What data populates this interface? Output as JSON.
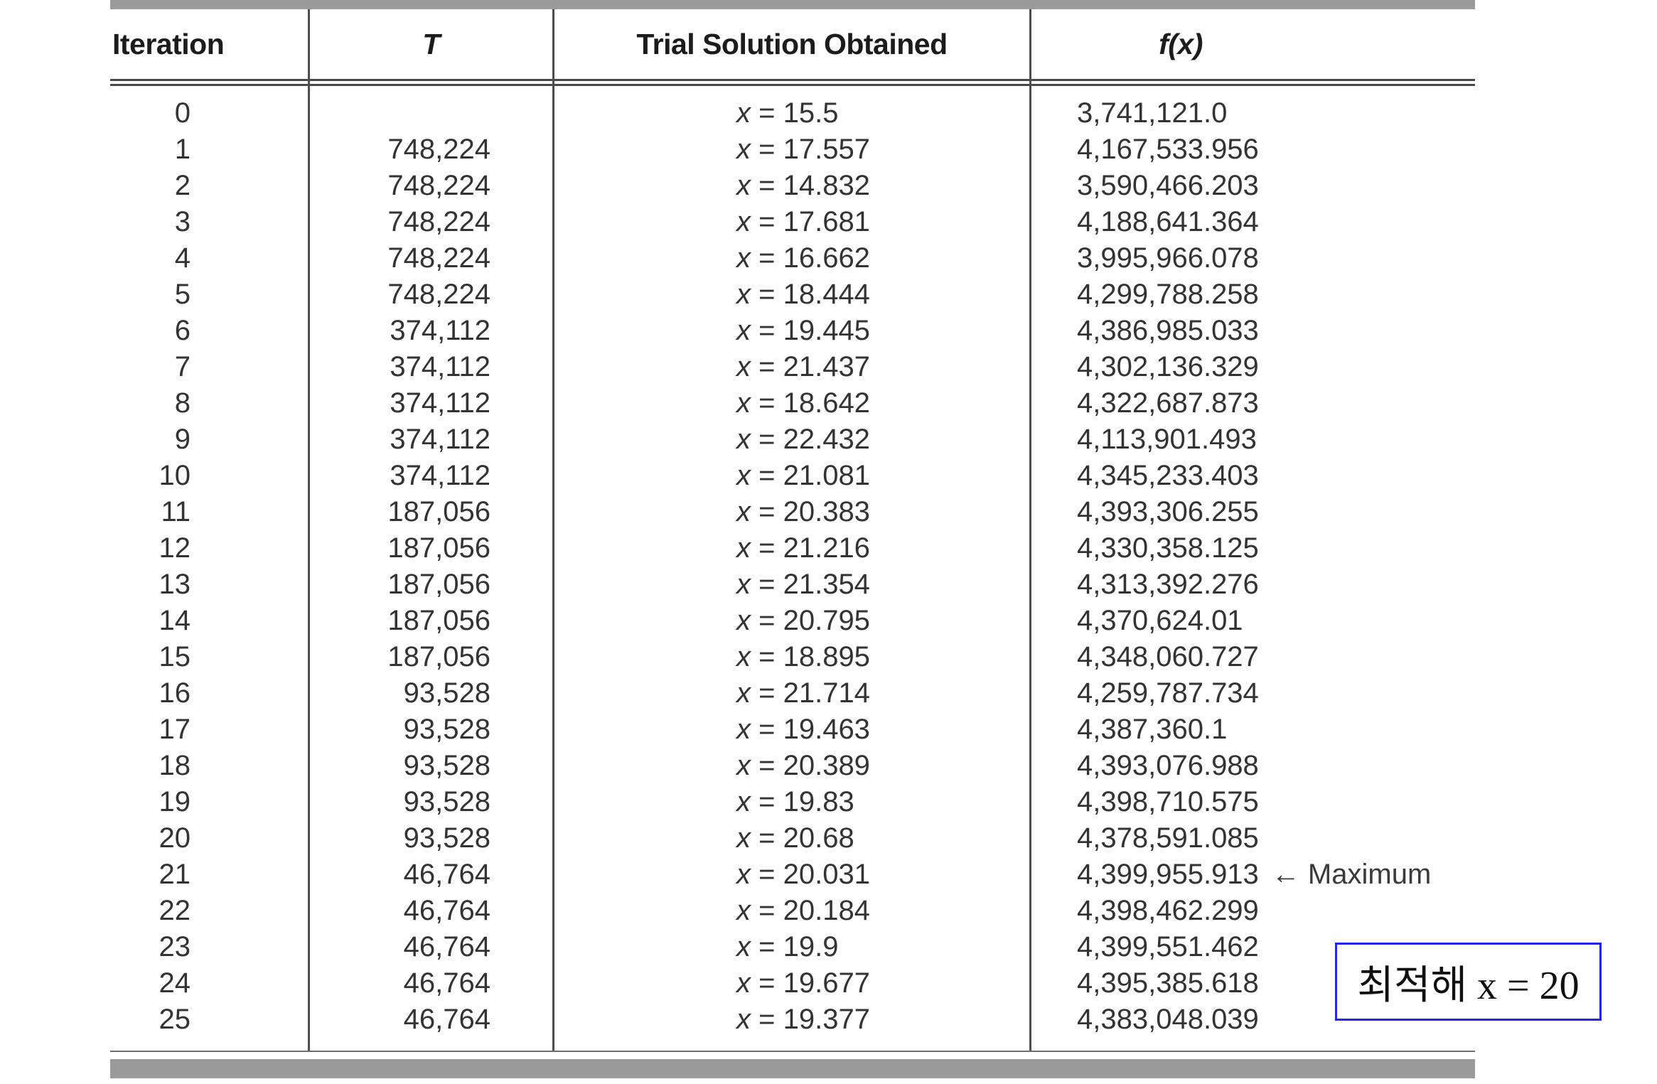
{
  "colors": {
    "bar_gray": "#9a9a9a",
    "rule_dark": "#474747",
    "body_text": "#333336",
    "header_text": "#1c1c1e",
    "annotation_border": "#2424f0",
    "annotation_text": "#101010"
  },
  "table": {
    "headers": {
      "iteration": "Iteration",
      "temperature": "T",
      "trial_solution": "Trial Solution Obtained",
      "fx": "f(x)"
    },
    "x_symbol": "x",
    "rows": [
      {
        "iteration": "0",
        "T": "",
        "x": "15.5",
        "fx": "3,741,121.0",
        "note": ""
      },
      {
        "iteration": "1",
        "T": "748,224",
        "x": "17.557",
        "fx": "4,167,533.956",
        "note": ""
      },
      {
        "iteration": "2",
        "T": "748,224",
        "x": "14.832",
        "fx": "3,590,466.203",
        "note": ""
      },
      {
        "iteration": "3",
        "T": "748,224",
        "x": "17.681",
        "fx": "4,188,641.364",
        "note": ""
      },
      {
        "iteration": "4",
        "T": "748,224",
        "x": "16.662",
        "fx": "3,995,966.078",
        "note": ""
      },
      {
        "iteration": "5",
        "T": "748,224",
        "x": "18.444",
        "fx": "4,299,788.258",
        "note": ""
      },
      {
        "iteration": "6",
        "T": "374,112",
        "x": "19.445",
        "fx": "4,386,985.033",
        "note": ""
      },
      {
        "iteration": "7",
        "T": "374,112",
        "x": "21.437",
        "fx": "4,302,136.329",
        "note": ""
      },
      {
        "iteration": "8",
        "T": "374,112",
        "x": "18.642",
        "fx": "4,322,687.873",
        "note": ""
      },
      {
        "iteration": "9",
        "T": "374,112",
        "x": "22.432",
        "fx": "4,113,901.493",
        "note": ""
      },
      {
        "iteration": "10",
        "T": "374,112",
        "x": "21.081",
        "fx": "4,345,233.403",
        "note": ""
      },
      {
        "iteration": "11",
        "T": "187,056",
        "x": "20.383",
        "fx": "4,393,306.255",
        "note": ""
      },
      {
        "iteration": "12",
        "T": "187,056",
        "x": "21.216",
        "fx": "4,330,358.125",
        "note": ""
      },
      {
        "iteration": "13",
        "T": "187,056",
        "x": "21.354",
        "fx": "4,313,392.276",
        "note": ""
      },
      {
        "iteration": "14",
        "T": "187,056",
        "x": "20.795",
        "fx": "4,370,624.01",
        "note": ""
      },
      {
        "iteration": "15",
        "T": "187,056",
        "x": "18.895",
        "fx": "4,348,060.727",
        "note": ""
      },
      {
        "iteration": "16",
        "T": "93,528",
        "x": "21.714",
        "fx": "4,259,787.734",
        "note": ""
      },
      {
        "iteration": "17",
        "T": "93,528",
        "x": "19.463",
        "fx": "4,387,360.1",
        "note": ""
      },
      {
        "iteration": "18",
        "T": "93,528",
        "x": "20.389",
        "fx": "4,393,076.988",
        "note": ""
      },
      {
        "iteration": "19",
        "T": "93,528",
        "x": "19.83",
        "fx": "4,398,710.575",
        "note": ""
      },
      {
        "iteration": "20",
        "T": "93,528",
        "x": "20.68",
        "fx": "4,378,591.085",
        "note": ""
      },
      {
        "iteration": "21",
        "T": "46,764",
        "x": "20.031",
        "fx": "4,399,955.913",
        "note": "← Maximum"
      },
      {
        "iteration": "22",
        "T": "46,764",
        "x": "20.184",
        "fx": "4,398,462.299",
        "note": ""
      },
      {
        "iteration": "23",
        "T": "46,764",
        "x": "19.9",
        "fx": "4,399,551.462",
        "note": ""
      },
      {
        "iteration": "24",
        "T": "46,764",
        "x": "19.677",
        "fx": "4,395,385.618",
        "note": ""
      },
      {
        "iteration": "25",
        "T": "46,764",
        "x": "19.377",
        "fx": "4,383,048.039",
        "note": ""
      }
    ]
  },
  "annotation": {
    "text": "최적해 x = 20"
  }
}
